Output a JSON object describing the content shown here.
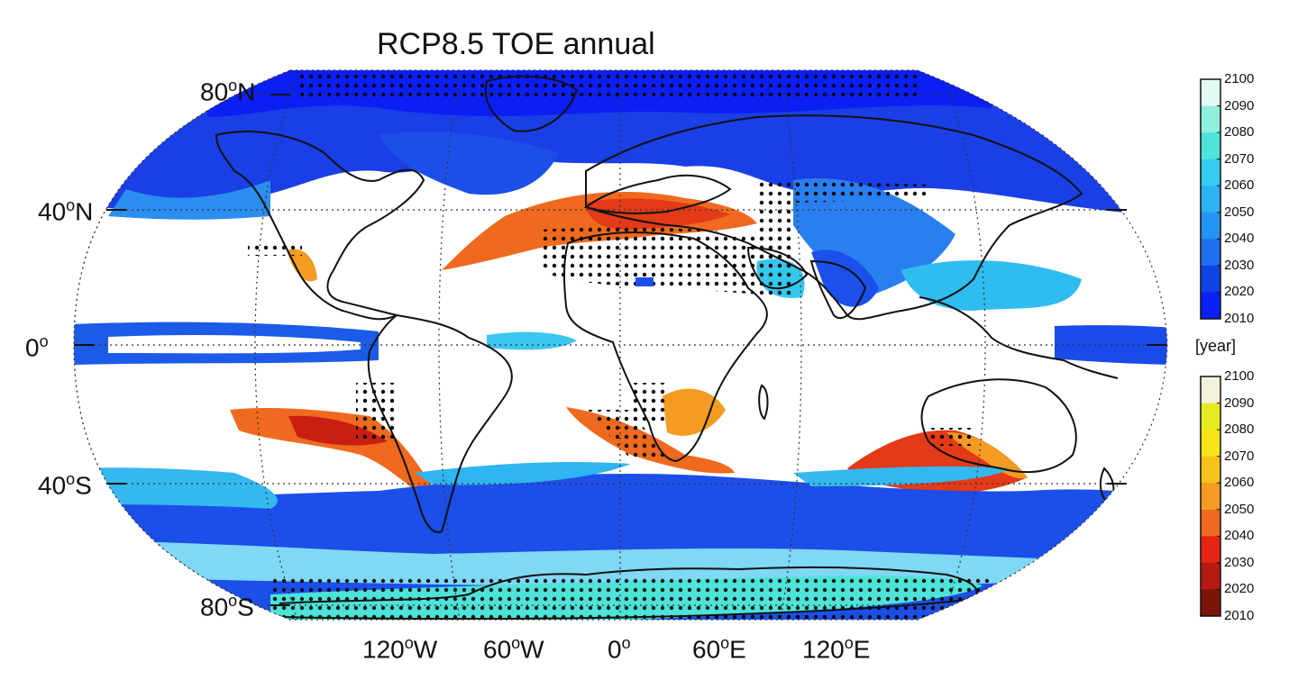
{
  "title": "RCP8.5 TOE annual",
  "lat_labels": {
    "n80": {
      "deg": "80",
      "sup": "o",
      "hemi": "N"
    },
    "n40": {
      "deg": "40",
      "sup": "o",
      "hemi": "N"
    },
    "eq": {
      "deg": "0",
      "sup": "o",
      "hemi": ""
    },
    "s40": {
      "deg": "40",
      "sup": "o",
      "hemi": "S"
    },
    "s80": {
      "deg": "80",
      "sup": "o",
      "hemi": "S"
    }
  },
  "lon_labels": {
    "w120": {
      "deg": "120",
      "sup": "o",
      "hemi": "W"
    },
    "w60": {
      "deg": "60",
      "sup": "o",
      "hemi": "W"
    },
    "zero": {
      "deg": "0",
      "sup": "o",
      "hemi": ""
    },
    "e60": {
      "deg": "60",
      "sup": "o",
      "hemi": "E"
    },
    "e120": {
      "deg": "120",
      "sup": "o",
      "hemi": "E"
    }
  },
  "colorbar_unit": "[year]",
  "colorbars": {
    "cool": {
      "ticks": [
        "2100",
        "2090",
        "2080",
        "2070",
        "2060",
        "2050",
        "2040",
        "2030",
        "2020",
        "2010"
      ],
      "colors": [
        "#e4fbf4",
        "#8ff0e0",
        "#4fe3dc",
        "#35cdee",
        "#2db2f2",
        "#2593f1",
        "#1c6fef",
        "#1043e5",
        "#0a20f4"
      ]
    },
    "warm": {
      "ticks": [
        "2100",
        "2090",
        "2080",
        "2070",
        "2060",
        "2050",
        "2040",
        "2030",
        "2020",
        "2010"
      ],
      "colors": [
        "#f4f2dd",
        "#e6ea22",
        "#f8e418",
        "#f7c21a",
        "#f39b22",
        "#ef6a1e",
        "#e62414",
        "#b41a10",
        "#7a1508"
      ]
    }
  },
  "map_colors": {
    "ocean_default": "#ffffff",
    "coast": "#111111",
    "grid": "#333333",
    "stipple": "#000000"
  }
}
